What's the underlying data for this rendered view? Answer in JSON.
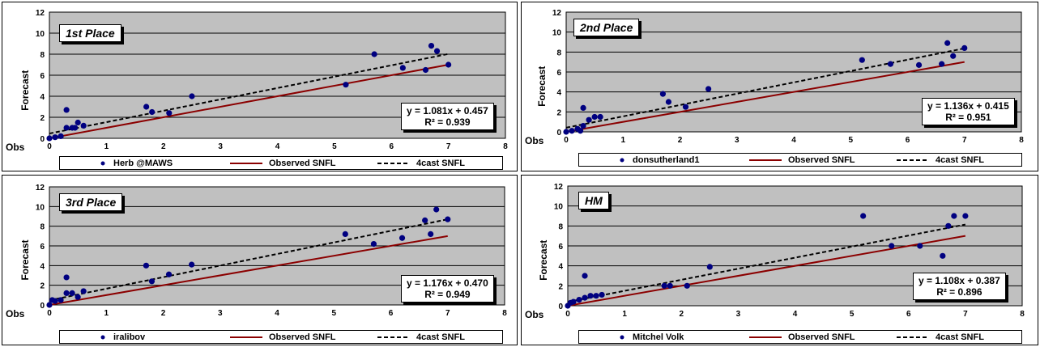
{
  "colors": {
    "plot_bg": "#c0c0c0",
    "point": "#000080",
    "observed_line": "#8b0000",
    "forecast_line": "#000000"
  },
  "chart_data": [
    {
      "type": "scatter",
      "place": "1st Place",
      "ylabel": "Forecast",
      "xlabel": "Obs",
      "xlim": [
        0,
        8
      ],
      "ylim": [
        0,
        12
      ],
      "xticks": [
        "0",
        "1",
        "2",
        "3",
        "4",
        "5",
        "6",
        "7",
        "8"
      ],
      "yticks": [
        "0",
        "2",
        "4",
        "6",
        "8",
        "10",
        "12"
      ],
      "grid": true,
      "equation": "y = 1.081x + 0.457",
      "r2": "R² = 0.939",
      "trend": {
        "slope": 1.081,
        "intercept": 0.457,
        "x": [
          0,
          7
        ]
      },
      "observed_line": {
        "x": [
          0,
          7
        ],
        "y": [
          0,
          7
        ]
      },
      "legend": [
        "Herb @MAWS",
        "Observed SNFL",
        "4cast SNFL"
      ],
      "points": [
        [
          0,
          0
        ],
        [
          0.1,
          0.1
        ],
        [
          0.2,
          0.2
        ],
        [
          0.3,
          1
        ],
        [
          0.3,
          2.7
        ],
        [
          0.4,
          1
        ],
        [
          0.45,
          1
        ],
        [
          0.5,
          1.5
        ],
        [
          0.6,
          1.2
        ],
        [
          1.7,
          3
        ],
        [
          1.8,
          2.5
        ],
        [
          2.1,
          2.4
        ],
        [
          2.5,
          4
        ],
        [
          5.2,
          5.1
        ],
        [
          5.7,
          8
        ],
        [
          6.2,
          6.7
        ],
        [
          6.6,
          6.5
        ],
        [
          6.7,
          8.8
        ],
        [
          6.8,
          8.3
        ],
        [
          7,
          7
        ]
      ]
    },
    {
      "type": "scatter",
      "place": "2nd Place",
      "ylabel": "Forecast",
      "xlabel": "Obs",
      "xlim": [
        0,
        8
      ],
      "ylim": [
        0,
        12
      ],
      "xticks": [
        "0",
        "1",
        "2",
        "3",
        "4",
        "5",
        "6",
        "7",
        "8"
      ],
      "yticks": [
        "0",
        "2",
        "4",
        "6",
        "8",
        "10",
        "12"
      ],
      "grid": true,
      "equation": "y = 1.136x + 0.415",
      "r2": "R² = 0.951",
      "trend": {
        "slope": 1.136,
        "intercept": 0.415,
        "x": [
          0,
          7
        ]
      },
      "observed_line": {
        "x": [
          0,
          7
        ],
        "y": [
          0,
          7
        ]
      },
      "legend": [
        "donsutherland1",
        "Observed SNFL",
        "4cast SNFL"
      ],
      "points": [
        [
          0,
          0
        ],
        [
          0.1,
          0.1
        ],
        [
          0.2,
          0.3
        ],
        [
          0.25,
          0.1
        ],
        [
          0.3,
          0.6
        ],
        [
          0.3,
          2.4
        ],
        [
          0.4,
          1.2
        ],
        [
          0.5,
          1.5
        ],
        [
          0.6,
          1.5
        ],
        [
          1.7,
          3.8
        ],
        [
          1.8,
          3
        ],
        [
          2.1,
          2.5
        ],
        [
          2.5,
          4.3
        ],
        [
          5.2,
          7.2
        ],
        [
          5.7,
          6.8
        ],
        [
          6.2,
          6.7
        ],
        [
          6.6,
          6.8
        ],
        [
          6.7,
          8.9
        ],
        [
          6.8,
          7.6
        ],
        [
          7,
          8.4
        ]
      ]
    },
    {
      "type": "scatter",
      "place": "3rd Place",
      "ylabel": "Forecast",
      "xlabel": "Obs",
      "xlim": [
        0,
        8
      ],
      "ylim": [
        0,
        12
      ],
      "xticks": [
        "0",
        "1",
        "2",
        "3",
        "4",
        "5",
        "6",
        "7",
        "8"
      ],
      "yticks": [
        "0",
        "2",
        "4",
        "6",
        "8",
        "10",
        "12"
      ],
      "grid": true,
      "equation": "y = 1.176x + 0.470",
      "r2": "R² = 0.949",
      "trend": {
        "slope": 1.176,
        "intercept": 0.47,
        "x": [
          0,
          7
        ]
      },
      "observed_line": {
        "x": [
          0,
          7
        ],
        "y": [
          0,
          7
        ]
      },
      "legend": [
        "iralibov",
        "Observed SNFL",
        "4cast SNFL"
      ],
      "points": [
        [
          0,
          0
        ],
        [
          0.05,
          0.5
        ],
        [
          0.1,
          0.4
        ],
        [
          0.2,
          0.5
        ],
        [
          0.3,
          1.2
        ],
        [
          0.3,
          2.8
        ],
        [
          0.4,
          1.2
        ],
        [
          0.5,
          0.8
        ],
        [
          0.6,
          1.4
        ],
        [
          1.7,
          4
        ],
        [
          1.8,
          2.4
        ],
        [
          2.1,
          3.1
        ],
        [
          2.5,
          4.1
        ],
        [
          5.2,
          7.2
        ],
        [
          5.7,
          6.2
        ],
        [
          6.2,
          6.8
        ],
        [
          6.6,
          8.6
        ],
        [
          6.7,
          7.2
        ],
        [
          6.8,
          9.7
        ],
        [
          7,
          8.7
        ]
      ]
    },
    {
      "type": "scatter",
      "place": "HM",
      "ylabel": "Forecast",
      "xlabel": "Obs",
      "xlim": [
        0,
        8
      ],
      "ylim": [
        0,
        12
      ],
      "xticks": [
        "0",
        "1",
        "2",
        "3",
        "4",
        "5",
        "6",
        "7",
        "8"
      ],
      "yticks": [
        "0",
        "2",
        "4",
        "6",
        "8",
        "10",
        "12"
      ],
      "grid": true,
      "equation": "y = 1.108x + 0.387",
      "r2": "R² = 0.896",
      "trend": {
        "slope": 1.108,
        "intercept": 0.387,
        "x": [
          0,
          7
        ]
      },
      "observed_line": {
        "x": [
          0,
          7
        ],
        "y": [
          0,
          7
        ]
      },
      "legend": [
        "Mitchel Volk",
        "Observed SNFL",
        "4cast SNFL"
      ],
      "points": [
        [
          0,
          0
        ],
        [
          0.05,
          0.3
        ],
        [
          0.1,
          0.4
        ],
        [
          0.2,
          0.6
        ],
        [
          0.3,
          0.8
        ],
        [
          0.3,
          3
        ],
        [
          0.4,
          1
        ],
        [
          0.5,
          1
        ],
        [
          0.6,
          1.1
        ],
        [
          1.7,
          2
        ],
        [
          1.8,
          2
        ],
        [
          2.1,
          2
        ],
        [
          2.5,
          3.9
        ],
        [
          5.2,
          9
        ],
        [
          5.7,
          6
        ],
        [
          6.2,
          6
        ],
        [
          6.6,
          5
        ],
        [
          6.7,
          8
        ],
        [
          6.8,
          9
        ],
        [
          7,
          9
        ]
      ]
    }
  ]
}
